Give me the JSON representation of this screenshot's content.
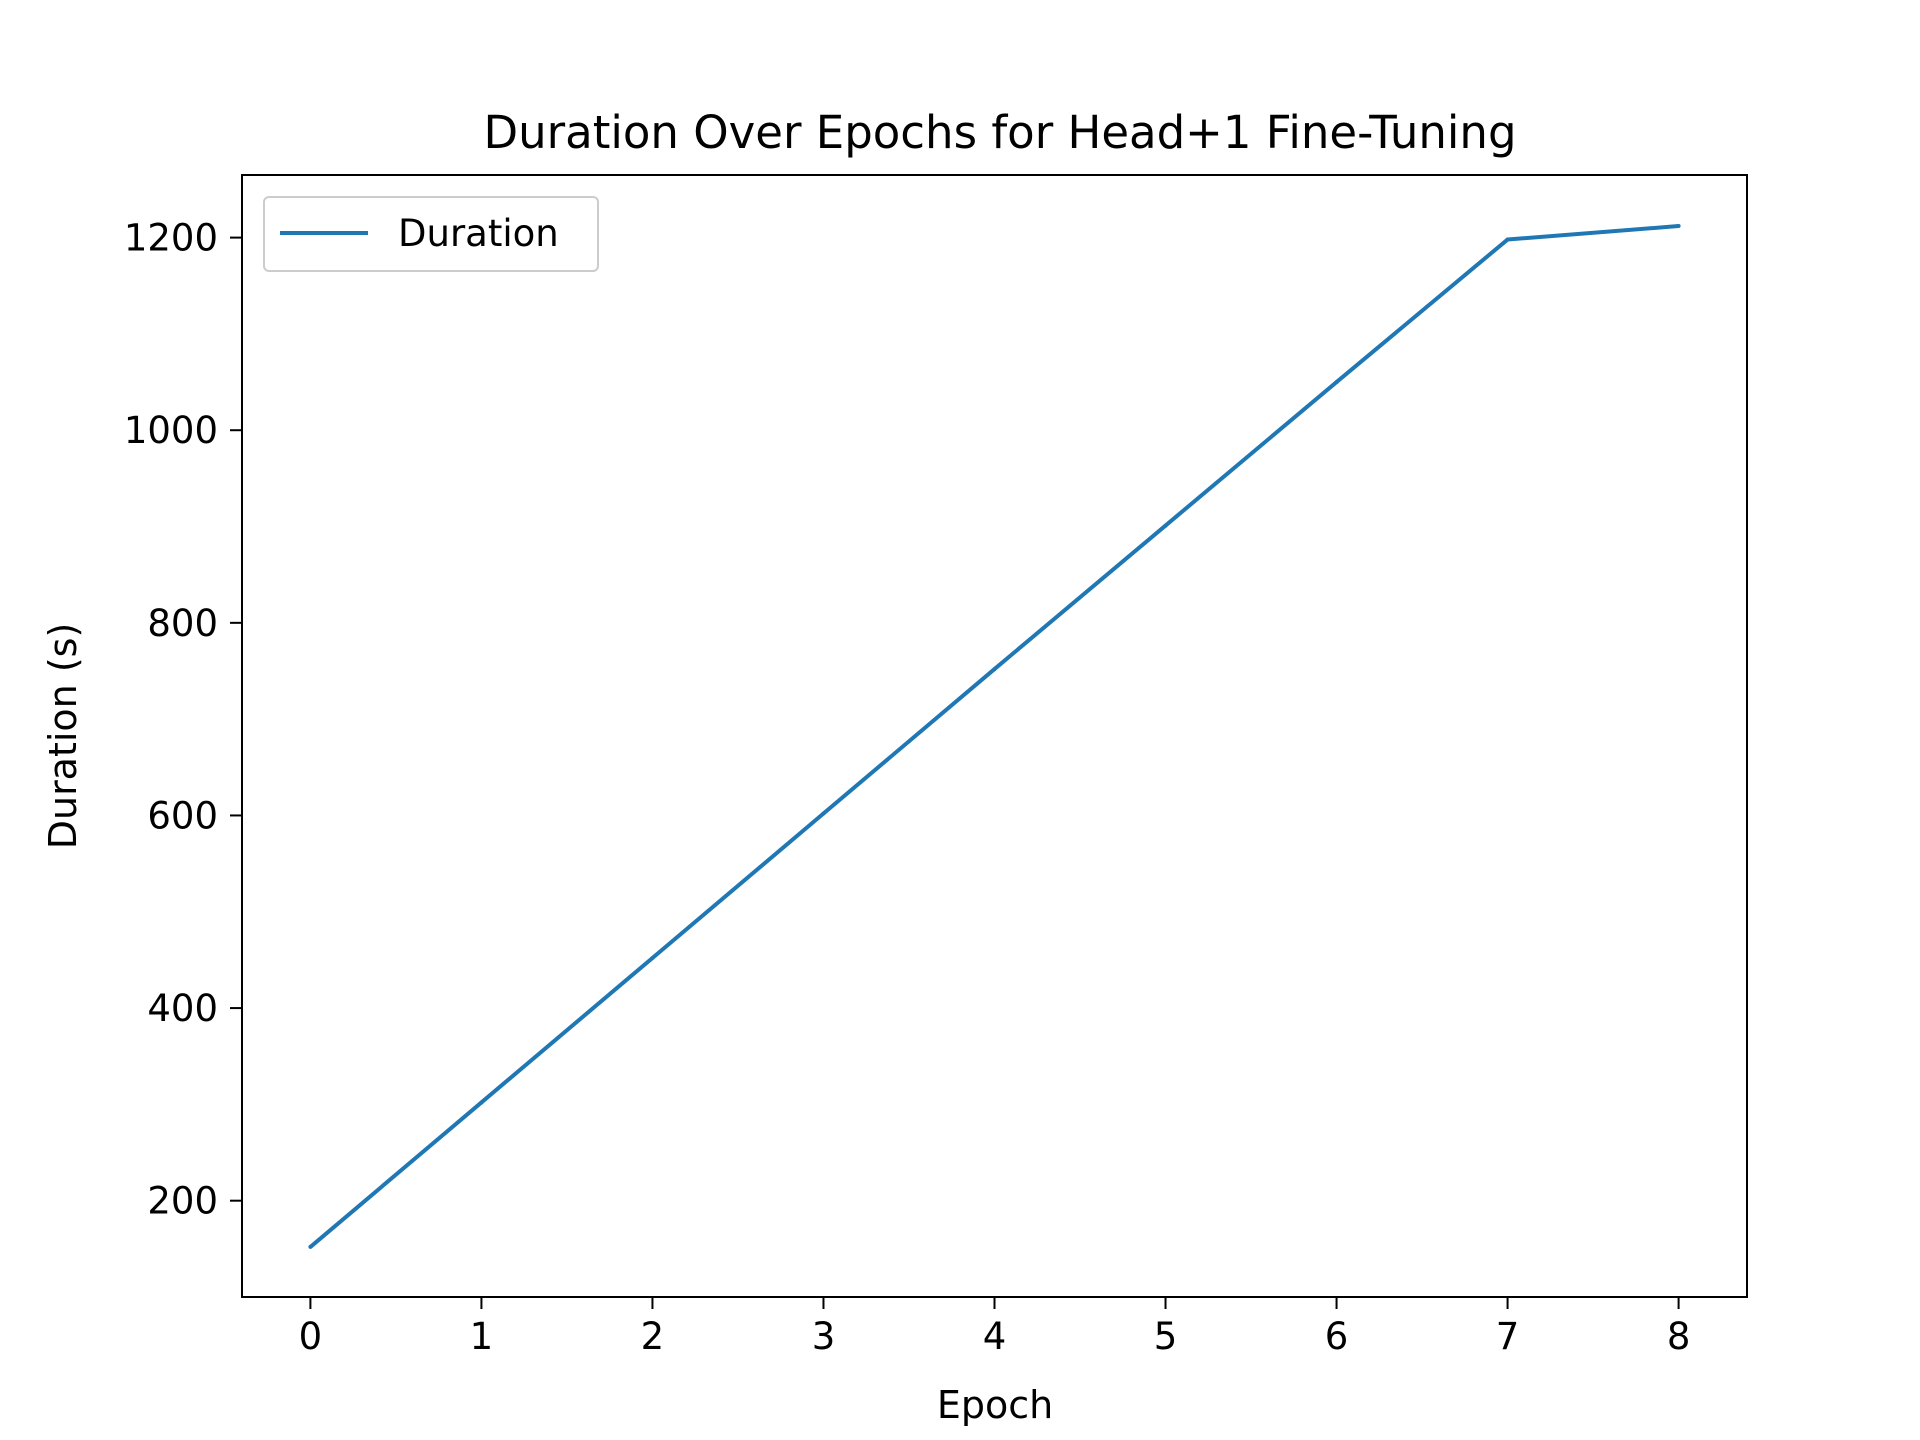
{
  "chart_data": {
    "type": "line",
    "title": "Duration Over Epochs for Head+1 Fine-Tuning",
    "xlabel": "Epoch",
    "ylabel": "Duration (s)",
    "x": [
      0,
      1,
      2,
      3,
      4,
      5,
      6,
      7,
      8
    ],
    "series": [
      {
        "name": "Duration",
        "color": "#1f77b4",
        "values": [
          152,
          302,
          452,
          602,
          752,
          901,
          1050,
          1198,
          1212
        ]
      }
    ],
    "xlim": [
      -0.4,
      8.4
    ],
    "ylim": [
      100,
      1265
    ],
    "xticks": [
      0,
      1,
      2,
      3,
      4,
      5,
      6,
      7,
      8
    ],
    "yticks": [
      200,
      400,
      600,
      800,
      1000,
      1200
    ],
    "grid": false,
    "legend_position": "upper-left"
  }
}
